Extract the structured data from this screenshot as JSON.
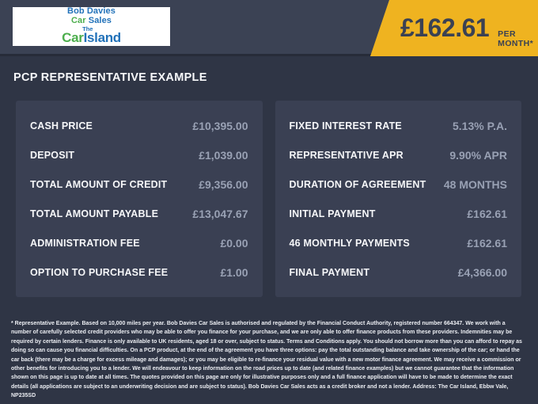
{
  "header": {
    "logo": {
      "row1": "Bob Davies",
      "row2_car": "Car",
      "row2_sales": " Sales",
      "row3_the": "The",
      "row3_car": "Car",
      "row3_island": "Island"
    },
    "price_banner": {
      "amount": "£162.61",
      "per": "PER MONTH*"
    }
  },
  "title": "PCP REPRESENTATIVE EXAMPLE",
  "panels": {
    "left": {
      "rows": [
        {
          "label": "CASH PRICE",
          "value": "£10,395.00"
        },
        {
          "label": "DEPOSIT",
          "value": "£1,039.00"
        },
        {
          "label": "TOTAL AMOUNT OF CREDIT",
          "value": "£9,356.00"
        },
        {
          "label": "TOTAL AMOUNT PAYABLE",
          "value": "£13,047.67"
        },
        {
          "label": "ADMINISTRATION FEE",
          "value": "£0.00"
        },
        {
          "label": "OPTION TO PURCHASE FEE",
          "value": "£1.00"
        }
      ]
    },
    "right": {
      "rows": [
        {
          "label": "FIXED INTEREST RATE",
          "value": "5.13% P.A."
        },
        {
          "label": "REPRESENTATIVE APR",
          "value": "9.90% APR"
        },
        {
          "label": "DURATION OF AGREEMENT",
          "value": "48 MONTHS"
        },
        {
          "label": "INITIAL PAYMENT",
          "value": "£162.61"
        },
        {
          "label": "46 MONTHLY PAYMENTS",
          "value": "£162.61"
        },
        {
          "label": "FINAL PAYMENT",
          "value": "£4,366.00"
        }
      ]
    }
  },
  "disclaimer": "* Representative Example. Based on 10,000 miles per year. Bob Davies Car Sales is authorised and regulated by the Financial Conduct Authority, registered number 664347. We work with a number of carefully selected credit providers who may be able to offer you finance for your purchase, and we are only able to offer finance products from these providers. Indemnities may be required by certain lenders. Finance is only available to UK residents, aged 18 or over, subject to status. Terms and Conditions apply. You should not borrow more than you can afford to repay as doing so can cause you financial difficulties. On a PCP product, at the end of the agreement you have three options: pay the total outstanding balance and take ownership of the car; or hand the car back (there may be a charge for excess mileage and damages); or you may be eligible to re-finance your residual value with a new motor finance agreement. We may receive a commission or other benefits for introducing you to a lender. We will endeavour to keep information on the road prices up to date (and related finance examples) but we cannot guarantee that the information shown on this page is up to date at all times. The quotes provided on this page are only for illustrative purposes only and a full finance application will have to be made to determine the exact details (all applications are subject to an underwriting decision and are subject to status). Bob Davies Car Sales acts as a credit broker and not a lender. Address: The Car Island, Ebbw Vale, NP235SD",
  "colors": {
    "accent_yellow": "#efb320",
    "banner_text": "#3a4153",
    "page_background": "#2f3545",
    "header_background": "#3b4254",
    "panel_background": "#3a4053",
    "label_text": "#f6f7f9",
    "value_text": "#99a1b4",
    "logo_blue": "#2272b9",
    "logo_green": "#4cae4c"
  }
}
